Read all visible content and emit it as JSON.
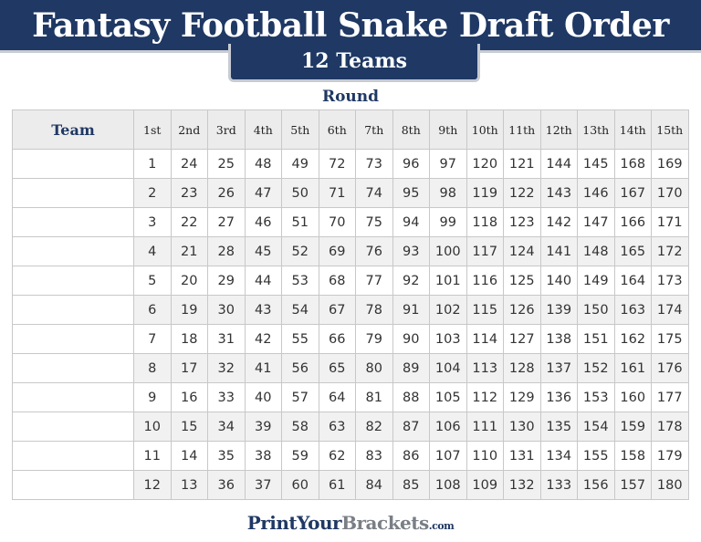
{
  "title": "Fantasy Football Snake Draft Order",
  "subtitle": "12 Teams",
  "round_label": "Round",
  "team_header": "Team",
  "rounds": [
    "1st",
    "2nd",
    "3rd",
    "4th",
    "5th",
    "6th",
    "7th",
    "8th",
    "9th",
    "10th",
    "11th",
    "12th",
    "13th",
    "14th",
    "15th"
  ],
  "rows": [
    [
      1,
      24,
      25,
      48,
      49,
      72,
      73,
      96,
      97,
      120,
      121,
      144,
      145,
      168,
      169
    ],
    [
      2,
      23,
      26,
      47,
      50,
      71,
      74,
      95,
      98,
      119,
      122,
      143,
      146,
      167,
      170
    ],
    [
      3,
      22,
      27,
      46,
      51,
      70,
      75,
      94,
      99,
      118,
      123,
      142,
      147,
      166,
      171
    ],
    [
      4,
      21,
      28,
      45,
      52,
      69,
      76,
      93,
      100,
      117,
      124,
      141,
      148,
      165,
      172
    ],
    [
      5,
      20,
      29,
      44,
      53,
      68,
      77,
      92,
      101,
      116,
      125,
      140,
      149,
      164,
      173
    ],
    [
      6,
      19,
      30,
      43,
      54,
      67,
      78,
      91,
      102,
      115,
      126,
      139,
      150,
      163,
      174
    ],
    [
      7,
      18,
      31,
      42,
      55,
      66,
      79,
      90,
      103,
      114,
      127,
      138,
      151,
      162,
      175
    ],
    [
      8,
      17,
      32,
      41,
      56,
      65,
      80,
      89,
      104,
      113,
      128,
      137,
      152,
      161,
      176
    ],
    [
      9,
      16,
      33,
      40,
      57,
      64,
      81,
      88,
      105,
      112,
      129,
      136,
      153,
      160,
      177
    ],
    [
      10,
      15,
      34,
      39,
      58,
      63,
      82,
      87,
      106,
      111,
      130,
      135,
      154,
      159,
      178
    ],
    [
      11,
      14,
      35,
      38,
      59,
      62,
      83,
      86,
      107,
      110,
      131,
      134,
      155,
      158,
      179
    ],
    [
      12,
      13,
      36,
      37,
      60,
      61,
      84,
      85,
      108,
      109,
      132,
      133,
      156,
      157,
      180
    ]
  ],
  "logo": {
    "part1": "PrintYour",
    "part2": "Brackets",
    "part3": ".com"
  },
  "colors": {
    "navy": "#1f3864",
    "gray": "#7a7f86"
  }
}
